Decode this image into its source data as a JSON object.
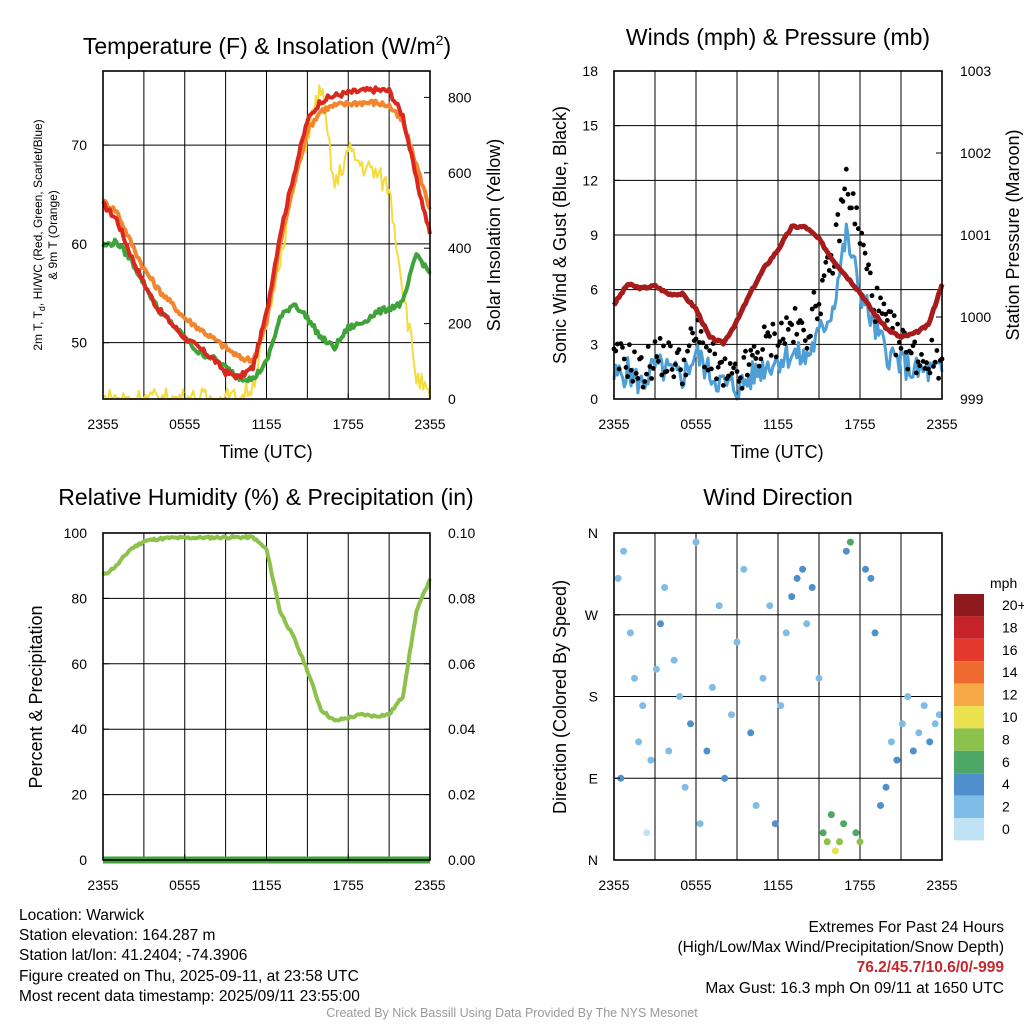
{
  "panels": {
    "temperature": {
      "title_main": "Temperature (F) & Insolation (W/m",
      "title_sup": "2",
      "title_end": ")",
      "xlabel": "Time (UTC)",
      "ylabel_lines": [
        "2m T, T",
        "d",
        ", HI/WC (Red, Green, Scarlet/Blue)",
        "& 9m T (Orange)"
      ],
      "ylabel_right": "Solar Insolation (Yellow)",
      "left_ticks": [
        "50",
        "60",
        "70"
      ],
      "right_ticks": [
        "0",
        "200",
        "400",
        "600",
        "800"
      ],
      "x_ticks": [
        "2355",
        "0555",
        "1155",
        "1755",
        "2355"
      ]
    },
    "wind": {
      "title": "Winds (mph) & Pressure (mb)",
      "xlabel": "Time (UTC)",
      "ylabel": "Sonic Wind & Gust (Blue, Black)",
      "ylabel_right": "Station Pressure (Maroon)",
      "left_ticks": [
        "0",
        "3",
        "6",
        "9",
        "12",
        "15",
        "18"
      ],
      "right_ticks": [
        "999",
        "1000",
        "1001",
        "1002",
        "1003"
      ],
      "x_ticks": [
        "2355",
        "0555",
        "1155",
        "1755",
        "2355"
      ]
    },
    "humidity": {
      "title": "Relative Humidity (%) & Precipitation (in)",
      "ylabel": "Percent & Precipitation",
      "left_ticks": [
        "0",
        "20",
        "40",
        "60",
        "80",
        "100"
      ],
      "right_ticks": [
        "0.00",
        "0.02",
        "0.04",
        "0.06",
        "0.08",
        "0.10"
      ],
      "x_ticks": [
        "2355",
        "0555",
        "1155",
        "1755",
        "2355"
      ]
    },
    "direction": {
      "title": "Wind Direction",
      "ylabel": "Direction (Colored By Speed)",
      "left_ticks": [
        "N",
        "E",
        "S",
        "W",
        "N"
      ],
      "x_ticks": [
        "2355",
        "0555",
        "1155",
        "1755",
        "2355"
      ],
      "legend_title": "mph",
      "legend_labels": [
        "0",
        "2",
        "4",
        "6",
        "8",
        "10",
        "12",
        "14",
        "16",
        "18",
        "20+"
      ],
      "legend_colors": [
        "#bfe3f5",
        "#7fbde6",
        "#4f8fcb",
        "#4da868",
        "#8cc24b",
        "#ebe04e",
        "#f7a947",
        "#ef6a2e",
        "#e2392c",
        "#c5222a",
        "#8e1a1e"
      ]
    }
  },
  "chart_data": [
    {
      "type": "line",
      "title": "Temperature (F) & Insolation (W/m2)",
      "xlabel": "Time (UTC)",
      "ylabel": "2m T, Td, HI/WC (Red, Green, Scarlet/Blue) & 9m T (Orange)",
      "y2label": "Solar Insolation (Yellow)",
      "x_hours_since_2355": [
        0,
        1,
        2,
        3,
        4,
        5,
        6,
        7,
        8,
        9,
        10,
        11,
        12,
        13,
        14,
        15,
        16,
        17,
        18,
        19,
        20,
        21,
        22,
        23,
        24
      ],
      "ylim": [
        44.3,
        77.5
      ],
      "y2lim": [
        0,
        870
      ],
      "series": [
        {
          "name": "2m T",
          "color": "#d9281f",
          "axis": "left",
          "values": [
            64,
            62.5,
            59,
            56,
            53.5,
            52,
            50.5,
            49.5,
            48.5,
            47,
            46.5,
            47.5,
            53,
            61,
            67,
            72.5,
            74.5,
            75,
            75.3,
            75.5,
            75.6,
            75.5,
            73,
            66.5,
            61
          ]
        },
        {
          "name": "9m T",
          "color": "#f2852d",
          "axis": "left",
          "values": [
            64.3,
            63.3,
            60.3,
            57.5,
            55.5,
            54,
            52.5,
            51.5,
            50.5,
            49.5,
            48.5,
            48.2,
            52,
            60,
            66,
            71.5,
            73.5,
            74,
            74.2,
            74.3,
            74.3,
            74,
            72.3,
            68,
            63.5
          ]
        },
        {
          "name": "Td",
          "color": "#3fa33a",
          "axis": "left",
          "values": [
            59.8,
            60.2,
            58.5,
            56,
            53.5,
            52,
            50.5,
            49,
            48.5,
            47.5,
            46.5,
            46.3,
            48,
            52.5,
            54,
            52.5,
            50.5,
            49.5,
            51.5,
            52,
            53,
            53.5,
            54,
            59,
            57
          ]
        },
        {
          "name": "Solar Insolation",
          "color": "#f4dc3e",
          "axis": "right",
          "values": [
            0,
            0,
            0,
            0,
            0,
            0,
            0,
            0,
            0,
            0,
            0,
            40,
            190,
            380,
            560,
            700,
            830,
            560,
            660,
            620,
            600,
            560,
            300,
            60,
            0
          ]
        }
      ]
    },
    {
      "type": "line",
      "title": "Winds (mph) & Pressure (mb)",
      "xlabel": "Time (UTC)",
      "ylabel": "Sonic Wind & Gust (Blue, Black)",
      "y2label": "Station Pressure (Maroon)",
      "x_hours_since_2355": [
        0,
        1,
        2,
        3,
        4,
        5,
        6,
        7,
        8,
        9,
        10,
        11,
        12,
        13,
        14,
        15,
        16,
        17,
        18,
        19,
        20,
        21,
        22,
        23,
        24
      ],
      "ylim": [
        0,
        18
      ],
      "y2lim": [
        999,
        1003
      ],
      "series": [
        {
          "name": "Sonic Wind",
          "color": "#4e9fd6",
          "axis": "left",
          "values": [
            1.2,
            1.5,
            0.8,
            1.8,
            1.5,
            1.2,
            2.5,
            1.4,
            0.8,
            0.6,
            1.2,
            1.8,
            2.2,
            2.5,
            2.2,
            3.5,
            5,
            9,
            6,
            4,
            2.5,
            2,
            1.5,
            1.5,
            1.5
          ]
        },
        {
          "name": "Gust",
          "color": "#000000",
          "axis": "left",
          "values": [
            2,
            2.2,
            1.4,
            2.4,
            2.2,
            1.8,
            3.6,
            2.2,
            1.2,
            1,
            2,
            3,
            3.4,
            4,
            3.6,
            5.5,
            7.5,
            12,
            9,
            5.5,
            4,
            3,
            2.4,
            2.2,
            2.2
          ]
        },
        {
          "name": "Station Pressure",
          "color": "#a61c1c",
          "axis": "right",
          "values": [
            1000.15,
            1000.4,
            1000.35,
            1000.38,
            1000.28,
            1000.28,
            1000.1,
            999.75,
            999.68,
            999.95,
            1000.3,
            1000.6,
            1000.82,
            1001.1,
            1001.1,
            1000.95,
            1000.7,
            1000.5,
            1000.3,
            1000.05,
            999.85,
            999.75,
            999.8,
            999.9,
            1000.4
          ]
        }
      ]
    },
    {
      "type": "line",
      "title": "Relative Humidity (%) & Precipitation (in)",
      "ylabel": "Percent & Precipitation",
      "x_hours_since_2355": [
        0,
        1,
        2,
        3,
        4,
        5,
        6,
        7,
        8,
        9,
        10,
        11,
        12,
        13,
        14,
        15,
        16,
        17,
        18,
        19,
        20,
        21,
        22,
        23,
        24
      ],
      "ylim": [
        0,
        100
      ],
      "y2lim": [
        0,
        0.1
      ],
      "series": [
        {
          "name": "Relative Humidity",
          "color": "#8cc24b",
          "axis": "left",
          "values": [
            87,
            90,
            95,
            97.5,
            98.2,
            98.5,
            98.5,
            98.6,
            98.6,
            98.7,
            98.7,
            98.7,
            95,
            76,
            68,
            58,
            46,
            42.5,
            43.5,
            44.5,
            44,
            44.5,
            50,
            76,
            86
          ]
        },
        {
          "name": "Precipitation",
          "color": "#3fa33a",
          "axis": "right",
          "values": [
            0,
            0,
            0,
            0,
            0,
            0,
            0,
            0,
            0,
            0,
            0,
            0,
            0,
            0,
            0,
            0,
            0,
            0,
            0,
            0,
            0,
            0,
            0,
            0,
            0
          ]
        }
      ]
    },
    {
      "type": "scatter",
      "title": "Wind Direction",
      "ylabel": "Direction (Colored By Speed)",
      "ylim": [
        0,
        360
      ],
      "points": [
        [
          0.3,
          310
        ],
        [
          0.5,
          90
        ],
        [
          0.7,
          340
        ],
        [
          1.2,
          250
        ],
        [
          1.5,
          200
        ],
        [
          1.8,
          130
        ],
        [
          2.1,
          170
        ],
        [
          2.4,
          30
        ],
        [
          2.7,
          110
        ],
        [
          3.1,
          210
        ],
        [
          3.4,
          260
        ],
        [
          3.7,
          300
        ],
        [
          4.0,
          120
        ],
        [
          4.4,
          220
        ],
        [
          4.8,
          180
        ],
        [
          5.2,
          80
        ],
        [
          5.6,
          150
        ],
        [
          6.0,
          350
        ],
        [
          6.3,
          40
        ],
        [
          6.8,
          120
        ],
        [
          7.2,
          190
        ],
        [
          7.7,
          280
        ],
        [
          8.1,
          90
        ],
        [
          8.6,
          160
        ],
        [
          9.0,
          240
        ],
        [
          9.5,
          320
        ],
        [
          10.0,
          140
        ],
        [
          10.4,
          60
        ],
        [
          10.9,
          200
        ],
        [
          11.4,
          280
        ],
        [
          11.8,
          40
        ],
        [
          12.2,
          170
        ],
        [
          12.6,
          250
        ],
        [
          13.0,
          290
        ],
        [
          13.4,
          310
        ],
        [
          13.8,
          320
        ],
        [
          14.1,
          260
        ],
        [
          14.5,
          300
        ],
        [
          15.0,
          200
        ],
        [
          15.3,
          30
        ],
        [
          15.6,
          20
        ],
        [
          15.9,
          50
        ],
        [
          16.2,
          10
        ],
        [
          16.5,
          20
        ],
        [
          16.8,
          40
        ],
        [
          17.0,
          340
        ],
        [
          17.3,
          350
        ],
        [
          17.7,
          30
        ],
        [
          18.0,
          20
        ],
        [
          18.4,
          320
        ],
        [
          18.8,
          310
        ],
        [
          19.1,
          250
        ],
        [
          19.5,
          60
        ],
        [
          19.9,
          80
        ],
        [
          20.3,
          130
        ],
        [
          20.7,
          110
        ],
        [
          21.1,
          150
        ],
        [
          21.5,
          180
        ],
        [
          21.9,
          120
        ],
        [
          22.3,
          140
        ],
        [
          22.7,
          170
        ],
        [
          23.1,
          130
        ],
        [
          23.5,
          150
        ],
        [
          23.8,
          160
        ]
      ],
      "speeds": [
        2,
        3,
        1,
        2,
        1,
        2,
        1,
        0,
        1,
        2,
        3,
        2,
        1,
        2,
        1,
        2,
        3,
        1,
        2,
        3,
        1,
        2,
        3,
        2,
        1,
        2,
        3,
        2,
        1,
        2,
        3,
        2,
        2,
        3,
        4,
        3,
        2,
        3,
        2,
        6,
        7,
        6,
        9,
        8,
        5,
        4,
        6,
        6,
        7,
        4,
        3,
        3,
        4,
        4,
        2,
        3,
        2,
        2,
        3,
        2,
        2,
        3,
        2,
        1
      ]
    }
  ],
  "info_left": [
    "Location: Warwick",
    "Station elevation: 164.287 m",
    "Station lat/lon: 41.2404; -74.3906",
    "Figure created on Thu, 2025-09-11, at 23:58 UTC",
    "Most recent data timestamp: 2025/09/11 23:55:00"
  ],
  "info_right": {
    "line1": "Extremes For Past 24 Hours",
    "line2": "(High/Low/Max Wind/Precipitation/Snow Depth)",
    "values": "76.2/45.7/10.6/0/-999",
    "gust": "Max Gust: 16.3 mph On 09/11 at 1650 UTC"
  },
  "credit": "Created By Nick Bassill Using Data Provided By The NYS Mesonet"
}
